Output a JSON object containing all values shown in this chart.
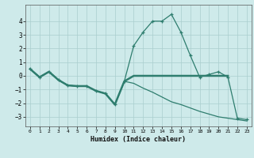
{
  "line_main_x": [
    0,
    1,
    2,
    3,
    4,
    5,
    6,
    7,
    8,
    9,
    10,
    11,
    12,
    13,
    14,
    15,
    16,
    17,
    18,
    19,
    20,
    21,
    22,
    23
  ],
  "line_main_y": [
    0.5,
    -0.1,
    0.3,
    -0.3,
    -0.7,
    -0.75,
    -0.75,
    -1.1,
    -1.3,
    -2.1,
    -0.4,
    2.2,
    3.2,
    4.0,
    4.0,
    4.5,
    3.2,
    1.5,
    -0.1,
    0.1,
    0.3,
    -0.1,
    -3.1,
    -3.2
  ],
  "line_horiz_x": [
    0,
    1,
    2,
    3,
    4,
    5,
    6,
    7,
    8,
    9,
    10,
    11,
    12,
    13,
    14,
    15,
    16,
    17,
    18,
    19,
    20,
    21
  ],
  "line_horiz_y": [
    0.5,
    -0.1,
    0.3,
    -0.3,
    -0.7,
    -0.75,
    -0.75,
    -1.1,
    -1.3,
    -2.1,
    -0.4,
    0.0,
    0.0,
    0.0,
    0.0,
    0.0,
    0.0,
    0.0,
    0.0,
    0.0,
    0.0,
    0.0
  ],
  "line_diag_x": [
    0,
    1,
    2,
    3,
    4,
    5,
    6,
    7,
    8,
    9,
    10,
    11,
    12,
    13,
    14,
    15,
    16,
    17,
    18,
    19,
    20,
    21,
    22,
    23
  ],
  "line_diag_y": [
    0.5,
    -0.1,
    0.3,
    -0.3,
    -0.7,
    -0.75,
    -0.75,
    -1.1,
    -1.3,
    -2.1,
    -0.4,
    -0.55,
    -0.9,
    -1.2,
    -1.55,
    -1.9,
    -2.1,
    -2.35,
    -2.6,
    -2.8,
    -3.0,
    -3.1,
    -3.2,
    -3.3
  ],
  "color": "#2e7d6e",
  "bg_color": "#ceeaea",
  "grid_color": "#aacece",
  "xlabel": "Humidex (Indice chaleur)",
  "xlim": [
    -0.5,
    23.5
  ],
  "ylim": [
    -3.7,
    5.2
  ],
  "yticks": [
    -3,
    -2,
    -1,
    0,
    1,
    2,
    3,
    4
  ],
  "xticks": [
    0,
    1,
    2,
    3,
    4,
    5,
    6,
    7,
    8,
    9,
    10,
    11,
    12,
    13,
    14,
    15,
    16,
    17,
    18,
    19,
    20,
    21,
    22,
    23
  ]
}
